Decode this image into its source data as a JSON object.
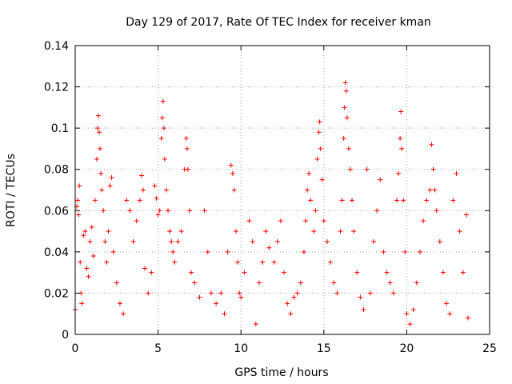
{
  "chart_data": {
    "type": "scatter",
    "title": "Day 129 of 2017, Rate Of TEC Index for receiver kman",
    "xlabel": "GPS time / hours",
    "ylabel": "ROTI / TECUs",
    "xlim": [
      0,
      25
    ],
    "ylim": [
      0,
      0.14
    ],
    "xticks": [
      0,
      5,
      10,
      15,
      20,
      25
    ],
    "xtick_labels": [
      "0",
      "5",
      "10",
      "15",
      "20",
      "25"
    ],
    "yticks": [
      0,
      0.02,
      0.04,
      0.06,
      0.08,
      0.1,
      0.12,
      0.14
    ],
    "ytick_labels": [
      "0",
      "0.02",
      "0.04",
      "0.06",
      "0.08",
      "0.1",
      "0.12",
      "0.14"
    ],
    "grid": true,
    "marker": "+",
    "color": "#ff0000",
    "series": [
      {
        "points": [
          [
            0.0,
            0.012
          ],
          [
            0.1,
            0.062
          ],
          [
            0.15,
            0.065
          ],
          [
            0.2,
            0.058
          ],
          [
            0.25,
            0.072
          ],
          [
            0.3,
            0.035
          ],
          [
            0.35,
            0.02
          ],
          [
            0.4,
            0.015
          ],
          [
            0.5,
            0.048
          ],
          [
            0.6,
            0.05
          ],
          [
            0.7,
            0.032
          ],
          [
            0.8,
            0.028
          ],
          [
            0.9,
            0.045
          ],
          [
            1.0,
            0.052
          ],
          [
            1.1,
            0.038
          ],
          [
            1.2,
            0.065
          ],
          [
            1.3,
            0.085
          ],
          [
            1.35,
            0.1
          ],
          [
            1.4,
            0.106
          ],
          [
            1.45,
            0.098
          ],
          [
            1.5,
            0.09
          ],
          [
            1.55,
            0.078
          ],
          [
            1.6,
            0.07
          ],
          [
            1.7,
            0.06
          ],
          [
            1.8,
            0.045
          ],
          [
            1.9,
            0.035
          ],
          [
            2.0,
            0.05
          ],
          [
            2.1,
            0.072
          ],
          [
            2.2,
            0.076
          ],
          [
            2.3,
            0.04
          ],
          [
            2.5,
            0.025
          ],
          [
            2.7,
            0.015
          ],
          [
            2.9,
            0.01
          ],
          [
            3.1,
            0.065
          ],
          [
            3.3,
            0.06
          ],
          [
            3.5,
            0.045
          ],
          [
            3.7,
            0.055
          ],
          [
            3.9,
            0.065
          ],
          [
            4.0,
            0.077
          ],
          [
            4.1,
            0.07
          ],
          [
            4.2,
            0.032
          ],
          [
            4.4,
            0.02
          ],
          [
            4.6,
            0.03
          ],
          [
            4.8,
            0.072
          ],
          [
            4.9,
            0.066
          ],
          [
            5.0,
            0.058
          ],
          [
            5.1,
            0.06
          ],
          [
            5.2,
            0.095
          ],
          [
            5.25,
            0.105
          ],
          [
            5.3,
            0.113
          ],
          [
            5.35,
            0.1
          ],
          [
            5.4,
            0.085
          ],
          [
            5.5,
            0.07
          ],
          [
            5.6,
            0.06
          ],
          [
            5.7,
            0.05
          ],
          [
            5.8,
            0.045
          ],
          [
            5.9,
            0.04
          ],
          [
            6.0,
            0.035
          ],
          [
            6.2,
            0.045
          ],
          [
            6.4,
            0.05
          ],
          [
            6.6,
            0.08
          ],
          [
            6.7,
            0.095
          ],
          [
            6.75,
            0.09
          ],
          [
            6.8,
            0.08
          ],
          [
            6.9,
            0.06
          ],
          [
            7.0,
            0.03
          ],
          [
            7.2,
            0.025
          ],
          [
            7.5,
            0.018
          ],
          [
            7.8,
            0.06
          ],
          [
            8.0,
            0.04
          ],
          [
            8.2,
            0.02
          ],
          [
            8.5,
            0.015
          ],
          [
            8.8,
            0.02
          ],
          [
            9.0,
            0.01
          ],
          [
            9.2,
            0.04
          ],
          [
            9.4,
            0.082
          ],
          [
            9.5,
            0.078
          ],
          [
            9.6,
            0.07
          ],
          [
            9.7,
            0.05
          ],
          [
            9.8,
            0.035
          ],
          [
            9.9,
            0.02
          ],
          [
            10.0,
            0.018
          ],
          [
            10.2,
            0.03
          ],
          [
            10.5,
            0.055
          ],
          [
            10.7,
            0.045
          ],
          [
            10.9,
            0.005
          ],
          [
            11.1,
            0.025
          ],
          [
            11.3,
            0.035
          ],
          [
            11.5,
            0.05
          ],
          [
            11.7,
            0.042
          ],
          [
            12.0,
            0.035
          ],
          [
            12.2,
            0.045
          ],
          [
            12.4,
            0.055
          ],
          [
            12.6,
            0.03
          ],
          [
            12.8,
            0.015
          ],
          [
            13.0,
            0.01
          ],
          [
            13.2,
            0.018
          ],
          [
            13.4,
            0.02
          ],
          [
            13.6,
            0.025
          ],
          [
            13.8,
            0.04
          ],
          [
            13.9,
            0.055
          ],
          [
            14.0,
            0.07
          ],
          [
            14.1,
            0.078
          ],
          [
            14.2,
            0.065
          ],
          [
            14.4,
            0.05
          ],
          [
            14.5,
            0.06
          ],
          [
            14.6,
            0.085
          ],
          [
            14.7,
            0.098
          ],
          [
            14.75,
            0.103
          ],
          [
            14.8,
            0.09
          ],
          [
            14.9,
            0.075
          ],
          [
            15.0,
            0.055
          ],
          [
            15.2,
            0.045
          ],
          [
            15.4,
            0.035
          ],
          [
            15.6,
            0.025
          ],
          [
            15.8,
            0.02
          ],
          [
            16.0,
            0.05
          ],
          [
            16.1,
            0.065
          ],
          [
            16.2,
            0.095
          ],
          [
            16.25,
            0.11
          ],
          [
            16.3,
            0.122
          ],
          [
            16.35,
            0.118
          ],
          [
            16.4,
            0.105
          ],
          [
            16.5,
            0.09
          ],
          [
            16.6,
            0.08
          ],
          [
            16.7,
            0.065
          ],
          [
            16.8,
            0.05
          ],
          [
            17.0,
            0.03
          ],
          [
            17.2,
            0.018
          ],
          [
            17.4,
            0.012
          ],
          [
            17.6,
            0.08
          ],
          [
            17.8,
            0.02
          ],
          [
            18.0,
            0.045
          ],
          [
            18.2,
            0.06
          ],
          [
            18.4,
            0.075
          ],
          [
            18.6,
            0.04
          ],
          [
            18.8,
            0.03
          ],
          [
            19.0,
            0.025
          ],
          [
            19.2,
            0.02
          ],
          [
            19.4,
            0.065
          ],
          [
            19.5,
            0.078
          ],
          [
            19.6,
            0.095
          ],
          [
            19.65,
            0.108
          ],
          [
            19.7,
            0.09
          ],
          [
            19.8,
            0.065
          ],
          [
            19.9,
            0.04
          ],
          [
            20.0,
            0.01
          ],
          [
            20.2,
            0.005
          ],
          [
            20.4,
            0.012
          ],
          [
            20.6,
            0.025
          ],
          [
            20.8,
            0.04
          ],
          [
            21.0,
            0.055
          ],
          [
            21.2,
            0.065
          ],
          [
            21.4,
            0.07
          ],
          [
            21.5,
            0.092
          ],
          [
            21.6,
            0.08
          ],
          [
            21.7,
            0.07
          ],
          [
            21.8,
            0.06
          ],
          [
            22.0,
            0.045
          ],
          [
            22.2,
            0.03
          ],
          [
            22.4,
            0.015
          ],
          [
            22.6,
            0.01
          ],
          [
            22.8,
            0.065
          ],
          [
            23.0,
            0.078
          ],
          [
            23.2,
            0.05
          ],
          [
            23.4,
            0.03
          ],
          [
            23.6,
            0.058
          ],
          [
            23.7,
            0.008
          ]
        ]
      }
    ]
  }
}
